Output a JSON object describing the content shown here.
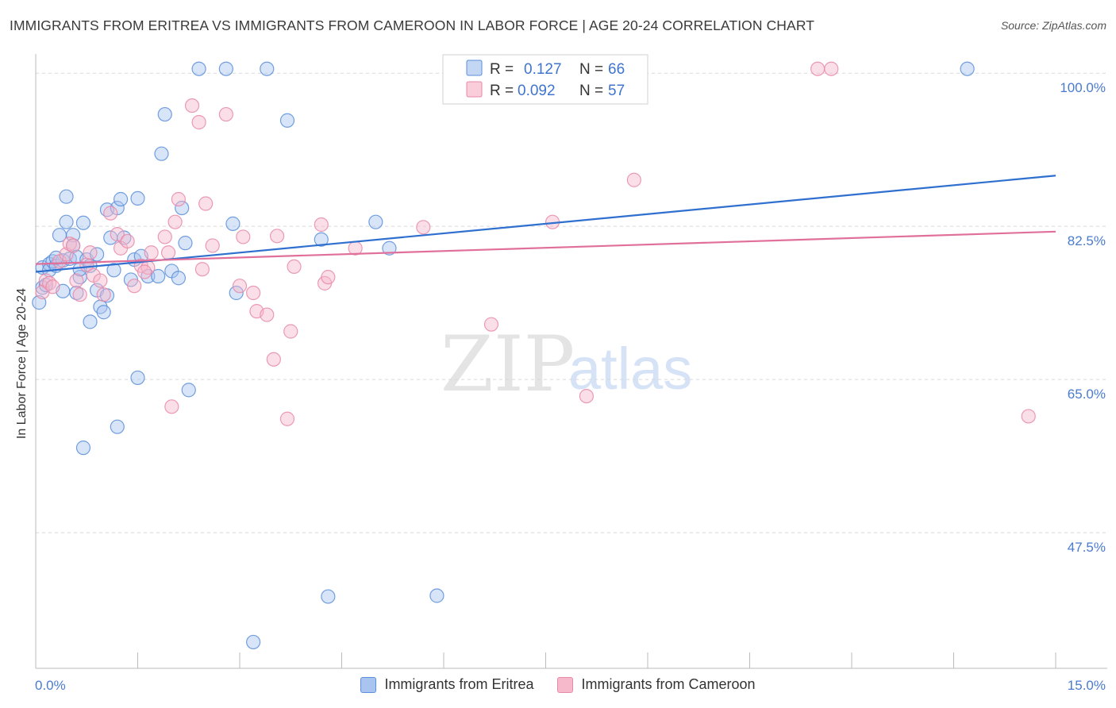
{
  "title": "IMMIGRANTS FROM ERITREA VS IMMIGRANTS FROM CAMEROON IN LABOR FORCE | AGE 20-24 CORRELATION CHART",
  "source": "Source: ZipAtlas.com",
  "watermark": {
    "zip": "ZIP",
    "atlas": "atlas"
  },
  "colors": {
    "eritrea_fill": "#a9c4ef",
    "eritrea_stroke": "#5b8fd9",
    "eritrea_line": "#2f6fcf",
    "cameroon_fill": "#f6b8cb",
    "cameroon_stroke": "#e889a8",
    "cameroon_line": "#e0709a",
    "tick_text": "#4a7bd0",
    "grid": "#d8d8d8"
  },
  "legend": {
    "eritrea": {
      "r_label": "R =",
      "r_value": "0.127",
      "n_label": "N =",
      "n_value": "66"
    },
    "cameroon": {
      "r_label": "R =",
      "r_value": "0.092",
      "n_label": "N =",
      "n_value": "57"
    }
  },
  "chart_data": {
    "type": "scatter",
    "title": "IMMIGRANTS FROM ERITREA VS IMMIGRANTS FROM CAMEROON IN LABOR FORCE | AGE 20-24 CORRELATION CHART",
    "xlabel": "",
    "ylabel": "In Labor Force | Age 20-24",
    "xlim": [
      0,
      15
    ],
    "ylim": [
      32,
      102
    ],
    "x_tick_labels": [
      "0.0%",
      "15.0%"
    ],
    "y_ticks": [
      47.5,
      65.0,
      82.5,
      100.0
    ],
    "y_tick_labels": [
      "47.5%",
      "65.0%",
      "82.5%",
      "100.0%"
    ],
    "grid": "horizontal dashed",
    "legend_position": "top-center",
    "series": [
      {
        "name": "Immigrants from Eritrea",
        "trend": {
          "x": [
            0,
            15
          ],
          "y": [
            77.3,
            88.3
          ]
        },
        "points": [
          [
            0.05,
            73.8
          ],
          [
            0.1,
            75.5
          ],
          [
            0.1,
            77.8
          ],
          [
            0.15,
            75.8
          ],
          [
            0.2,
            78.2
          ],
          [
            0.2,
            77.5
          ],
          [
            0.25,
            78.5
          ],
          [
            0.3,
            78.0
          ],
          [
            0.35,
            81.5
          ],
          [
            0.4,
            78.6
          ],
          [
            0.4,
            75.1
          ],
          [
            0.45,
            83.0
          ],
          [
            0.45,
            85.9
          ],
          [
            0.5,
            78.8
          ],
          [
            0.55,
            81.5
          ],
          [
            0.55,
            80.3
          ],
          [
            0.6,
            79.0
          ],
          [
            0.65,
            76.7
          ],
          [
            0.65,
            77.6
          ],
          [
            0.7,
            82.9
          ],
          [
            0.7,
            57.2
          ],
          [
            0.75,
            78.7
          ],
          [
            0.8,
            71.6
          ],
          [
            0.8,
            78.0
          ],
          [
            0.9,
            75.2
          ],
          [
            0.9,
            79.3
          ],
          [
            0.95,
            73.3
          ],
          [
            1.0,
            72.7
          ],
          [
            1.05,
            74.6
          ],
          [
            1.05,
            84.4
          ],
          [
            1.1,
            81.2
          ],
          [
            1.15,
            77.5
          ],
          [
            1.2,
            84.6
          ],
          [
            1.2,
            59.6
          ],
          [
            1.25,
            85.6
          ],
          [
            1.3,
            81.2
          ],
          [
            1.4,
            76.4
          ],
          [
            1.5,
            85.7
          ],
          [
            1.45,
            78.7
          ],
          [
            1.5,
            65.2
          ],
          [
            1.55,
            79.1
          ],
          [
            1.65,
            76.8
          ],
          [
            1.8,
            76.8
          ],
          [
            1.85,
            90.8
          ],
          [
            1.9,
            95.3
          ],
          [
            2.0,
            77.4
          ],
          [
            2.1,
            76.6
          ],
          [
            2.15,
            84.6
          ],
          [
            2.2,
            80.6
          ],
          [
            2.25,
            63.8
          ],
          [
            2.4,
            100.5
          ],
          [
            2.8,
            100.5
          ],
          [
            2.9,
            82.8
          ],
          [
            2.95,
            74.9
          ],
          [
            3.2,
            35.0
          ],
          [
            3.4,
            100.5
          ],
          [
            3.7,
            94.6
          ],
          [
            4.2,
            81.0
          ],
          [
            4.3,
            40.2
          ],
          [
            5.0,
            83.0
          ],
          [
            5.2,
            80.0
          ],
          [
            5.9,
            40.3
          ],
          [
            6.5,
            100.5
          ],
          [
            13.7,
            100.5
          ],
          [
            0.6,
            74.9
          ],
          [
            0.3,
            78.9
          ]
        ]
      },
      {
        "name": "Immigrants from Cameroon",
        "trend": {
          "x": [
            0,
            15
          ],
          "y": [
            78.2,
            81.9
          ]
        },
        "points": [
          [
            0.1,
            75.0
          ],
          [
            0.15,
            76.3
          ],
          [
            0.2,
            76.0
          ],
          [
            0.25,
            75.6
          ],
          [
            0.35,
            78.5
          ],
          [
            0.45,
            79.3
          ],
          [
            0.5,
            80.5
          ],
          [
            0.6,
            76.3
          ],
          [
            0.65,
            74.7
          ],
          [
            0.75,
            78.1
          ],
          [
            0.8,
            79.5
          ],
          [
            0.85,
            76.9
          ],
          [
            0.95,
            76.3
          ],
          [
            1.0,
            74.7
          ],
          [
            1.1,
            84.0
          ],
          [
            1.2,
            81.6
          ],
          [
            1.25,
            80.0
          ],
          [
            1.35,
            80.8
          ],
          [
            1.45,
            75.7
          ],
          [
            1.55,
            78.0
          ],
          [
            1.65,
            77.8
          ],
          [
            1.7,
            79.5
          ],
          [
            1.9,
            81.3
          ],
          [
            1.95,
            79.5
          ],
          [
            2.0,
            61.9
          ],
          [
            2.05,
            83.0
          ],
          [
            2.1,
            85.6
          ],
          [
            2.3,
            96.3
          ],
          [
            2.4,
            94.4
          ],
          [
            2.45,
            77.6
          ],
          [
            2.5,
            85.1
          ],
          [
            2.6,
            80.3
          ],
          [
            2.8,
            95.3
          ],
          [
            3.0,
            75.7
          ],
          [
            3.05,
            81.3
          ],
          [
            3.2,
            74.9
          ],
          [
            3.25,
            72.8
          ],
          [
            3.4,
            72.4
          ],
          [
            3.5,
            67.3
          ],
          [
            3.55,
            81.4
          ],
          [
            3.7,
            60.5
          ],
          [
            3.75,
            70.5
          ],
          [
            3.8,
            77.9
          ],
          [
            4.2,
            82.7
          ],
          [
            4.25,
            76.0
          ],
          [
            4.3,
            76.7
          ],
          [
            4.7,
            80.0
          ],
          [
            5.7,
            82.4
          ],
          [
            6.7,
            71.3
          ],
          [
            7.6,
            83.0
          ],
          [
            8.1,
            63.1
          ],
          [
            8.8,
            87.8
          ],
          [
            11.5,
            100.5
          ],
          [
            11.7,
            100.5
          ],
          [
            14.6,
            60.8
          ],
          [
            1.6,
            77.3
          ],
          [
            0.55,
            80.3
          ]
        ]
      }
    ]
  }
}
